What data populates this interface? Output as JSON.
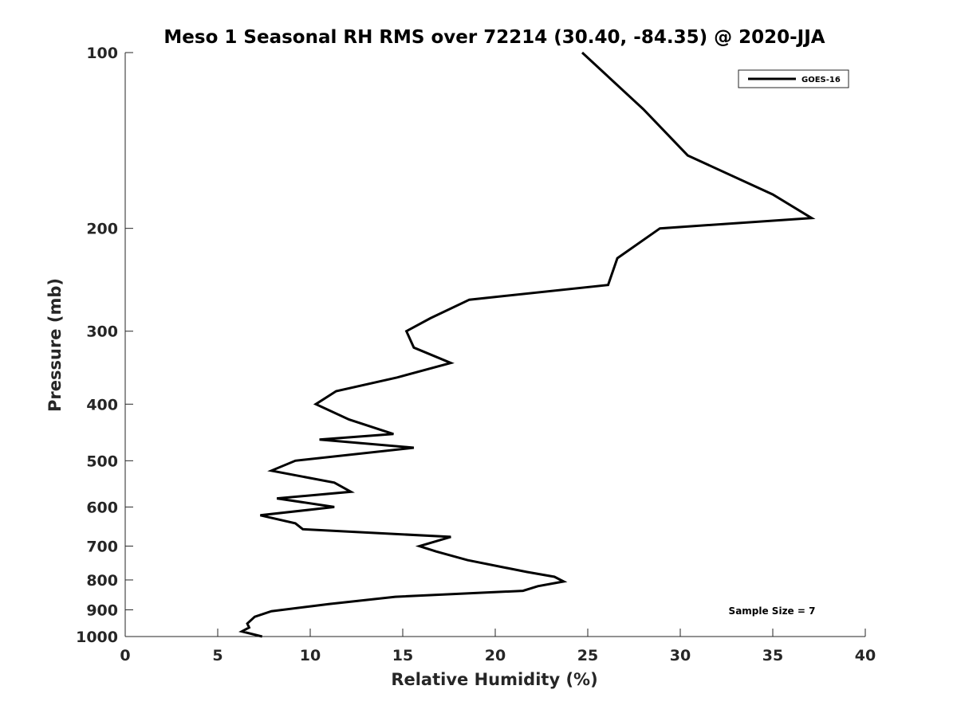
{
  "chart_data": {
    "type": "line",
    "title": "Meso 1 Seasonal RH RMS over 72214 (30.40, -84.35) @ 2020-JJA",
    "xlabel": "Relative Humidity (%)",
    "ylabel": "Pressure (mb)",
    "xlim": [
      0,
      40
    ],
    "ylim": [
      100,
      1000
    ],
    "y_scale": "log",
    "y_reversed": true,
    "grid": false,
    "x_ticks": [
      0,
      5,
      10,
      15,
      20,
      25,
      30,
      35,
      40
    ],
    "y_ticks": [
      100,
      200,
      300,
      400,
      500,
      600,
      700,
      800,
      900,
      1000
    ],
    "legend": {
      "location": "top-right",
      "entries": [
        "GOES-16"
      ]
    },
    "annotation": "Sample Size = 7",
    "colors": {
      "series": "#000000",
      "axes": "#262626",
      "background": "#ffffff"
    },
    "series": [
      {
        "name": "GOES-16",
        "points": [
          {
            "x": 24.7,
            "p": 100
          },
          {
            "x": 28.0,
            "p": 125
          },
          {
            "x": 30.4,
            "p": 150
          },
          {
            "x": 35.0,
            "p": 175
          },
          {
            "x": 37.1,
            "p": 192
          },
          {
            "x": 28.9,
            "p": 200
          },
          {
            "x": 26.6,
            "p": 225
          },
          {
            "x": 26.1,
            "p": 250
          },
          {
            "x": 18.6,
            "p": 265
          },
          {
            "x": 16.5,
            "p": 285
          },
          {
            "x": 15.2,
            "p": 300
          },
          {
            "x": 15.6,
            "p": 320
          },
          {
            "x": 17.6,
            "p": 340
          },
          {
            "x": 14.7,
            "p": 360
          },
          {
            "x": 11.4,
            "p": 380
          },
          {
            "x": 10.3,
            "p": 400
          },
          {
            "x": 12.1,
            "p": 425
          },
          {
            "x": 14.5,
            "p": 450
          },
          {
            "x": 10.5,
            "p": 460
          },
          {
            "x": 15.6,
            "p": 475
          },
          {
            "x": 9.2,
            "p": 500
          },
          {
            "x": 7.9,
            "p": 520
          },
          {
            "x": 11.3,
            "p": 545
          },
          {
            "x": 12.2,
            "p": 565
          },
          {
            "x": 8.2,
            "p": 580
          },
          {
            "x": 11.3,
            "p": 600
          },
          {
            "x": 7.3,
            "p": 620
          },
          {
            "x": 9.2,
            "p": 640
          },
          {
            "x": 9.6,
            "p": 655
          },
          {
            "x": 17.6,
            "p": 675
          },
          {
            "x": 15.9,
            "p": 700
          },
          {
            "x": 16.8,
            "p": 715
          },
          {
            "x": 18.5,
            "p": 740
          },
          {
            "x": 21.7,
            "p": 775
          },
          {
            "x": 23.2,
            "p": 790
          },
          {
            "x": 23.7,
            "p": 805
          },
          {
            "x": 22.3,
            "p": 820
          },
          {
            "x": 21.5,
            "p": 835
          },
          {
            "x": 18.0,
            "p": 845
          },
          {
            "x": 14.6,
            "p": 855
          },
          {
            "x": 11.0,
            "p": 880
          },
          {
            "x": 7.9,
            "p": 905
          },
          {
            "x": 7.0,
            "p": 925
          },
          {
            "x": 6.6,
            "p": 950
          },
          {
            "x": 6.7,
            "p": 965
          },
          {
            "x": 6.3,
            "p": 980
          },
          {
            "x": 7.4,
            "p": 1000
          }
        ]
      }
    ]
  }
}
